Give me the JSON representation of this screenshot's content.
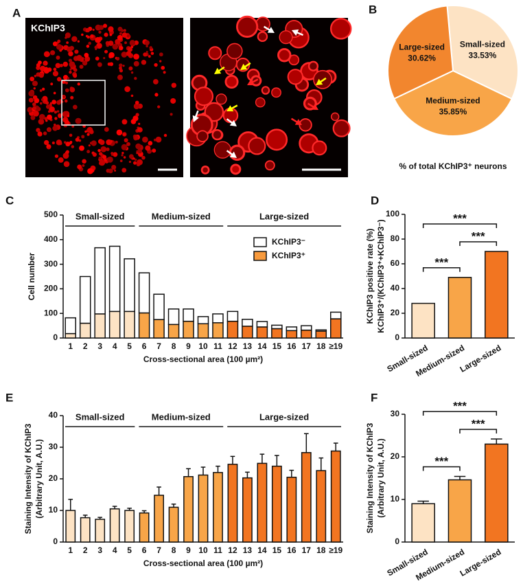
{
  "image_panel": {
    "panel": "A",
    "label": "KChIP3"
  },
  "chart_data": [
    {
      "panel": "B",
      "type": "pie",
      "caption": "% of total KChIP3⁺ neurons",
      "categories": [
        "Small-sized",
        "Medium-sized",
        "Large-sized"
      ],
      "values": [
        33.53,
        35.85,
        30.62
      ],
      "value_labels": [
        "33.53%",
        "35.85%",
        "30.62%"
      ],
      "colors": [
        "#fde3c4",
        "#f8a548",
        "#f2862e"
      ]
    },
    {
      "panel": "C",
      "type": "stacked_bar",
      "xlabel": "Cross-sectional area (100 µm²)",
      "ylabel": "Cell number",
      "categories": [
        "1",
        "2",
        "3",
        "4",
        "5",
        "6",
        "7",
        "8",
        "9",
        "10",
        "11",
        "12",
        "13",
        "14",
        "15",
        "16",
        "17",
        "18",
        "≥19"
      ],
      "series": [
        {
          "name": "KChIP3⁺",
          "color": "#f89a3c",
          "colors": [
            "#fde3c4",
            "#fde3c4",
            "#fde3c4",
            "#fde3c4",
            "#fde3c4",
            "#f8a548",
            "#f8a548",
            "#f8a548",
            "#f8a548",
            "#f8a548",
            "#f8a548",
            "#f27521",
            "#f27521",
            "#f27521",
            "#f27521",
            "#f27521",
            "#f27521",
            "#f27521",
            "#f27521"
          ],
          "values": [
            18,
            60,
            98,
            108,
            108,
            102,
            75,
            55,
            68,
            58,
            62,
            68,
            48,
            45,
            38,
            30,
            32,
            28,
            78
          ]
        },
        {
          "name": "KChIP3⁻",
          "color": "#ffffff",
          "values": [
            64,
            190,
            269,
            265,
            214,
            163,
            103,
            63,
            50,
            29,
            36,
            40,
            28,
            22,
            14,
            15,
            18,
            5,
            27
          ]
        }
      ],
      "ylim": [
        0,
        500
      ],
      "yticks": [
        0,
        100,
        200,
        300,
        400,
        500
      ],
      "legend": "upper right",
      "groups": [
        {
          "name": "Small-sized",
          "from": "1",
          "to": "5"
        },
        {
          "name": "Medium-sized",
          "from": "6",
          "to": "11"
        },
        {
          "name": "Large-sized",
          "from": "12",
          "to": "≥19"
        }
      ]
    },
    {
      "panel": "D",
      "type": "bar",
      "ylabel": [
        "KChIP3 positive rate (%)",
        "KChIP3⁺/(KChIP3⁺+KChIP3⁻)"
      ],
      "categories": [
        "Small-sized",
        "Medium-sized",
        "Large-sized"
      ],
      "values": [
        28,
        49,
        70
      ],
      "colors": [
        "#fde3c4",
        "#f8a548",
        "#f27521"
      ],
      "ylim": [
        0,
        100
      ],
      "yticks": [
        0,
        20,
        40,
        60,
        80,
        100
      ],
      "significance": [
        {
          "label": "***",
          "between": [
            "Small-sized",
            "Large-sized"
          ]
        },
        {
          "label": "***",
          "between": [
            "Small-sized",
            "Medium-sized"
          ]
        },
        {
          "label": "***",
          "between": [
            "Medium-sized",
            "Large-sized"
          ]
        }
      ]
    },
    {
      "panel": "E",
      "type": "bar",
      "xlabel": "Cross-sectional area (100 µm²)",
      "ylabel": [
        "Staining Intensity of KChIP3",
        "(Arbitrary Unit, A.U.)"
      ],
      "categories": [
        "1",
        "2",
        "3",
        "4",
        "5",
        "6",
        "7",
        "8",
        "9",
        "10",
        "11",
        "12",
        "13",
        "14",
        "15",
        "16",
        "17",
        "18",
        "≥19"
      ],
      "values": [
        10,
        7.7,
        7.2,
        10.5,
        10,
        9.2,
        14.8,
        11,
        20.7,
        21.2,
        22,
        24.6,
        20.3,
        24.9,
        24,
        20.5,
        28.3,
        22.6,
        28.8
      ],
      "errors": [
        3.5,
        0.8,
        0.6,
        0.8,
        0.7,
        0.7,
        2.6,
        1,
        2.5,
        2.5,
        2,
        2.5,
        1.8,
        2.9,
        3.4,
        2.2,
        6,
        4,
        2.5
      ],
      "colors": [
        "#fde3c4",
        "#fde3c4",
        "#fde3c4",
        "#fde3c4",
        "#fde3c4",
        "#f8a548",
        "#f8a548",
        "#f8a548",
        "#f8a548",
        "#f8a548",
        "#f8a548",
        "#f27521",
        "#f27521",
        "#f27521",
        "#f27521",
        "#f27521",
        "#f27521",
        "#f27521",
        "#f27521"
      ],
      "ylim": [
        0,
        40
      ],
      "yticks": [
        0,
        10,
        20,
        30,
        40
      ],
      "groups": [
        {
          "name": "Small-sized",
          "from": "1",
          "to": "5"
        },
        {
          "name": "Medium-sized",
          "from": "6",
          "to": "11"
        },
        {
          "name": "Large-sized",
          "from": "12",
          "to": "≥19"
        }
      ]
    },
    {
      "panel": "F",
      "type": "bar",
      "ylabel": [
        "Staining Intensity of KChIP3",
        "(Arbitrary Unit, A.U.)"
      ],
      "categories": [
        "Small-sized",
        "Medium-sized",
        "Large-sized"
      ],
      "values": [
        9,
        14.6,
        23
      ],
      "errors": [
        0.6,
        0.8,
        1.2
      ],
      "colors": [
        "#fde3c4",
        "#f8a548",
        "#f27521"
      ],
      "ylim": [
        0,
        30
      ],
      "yticks": [
        0,
        10,
        20,
        30
      ],
      "significance": [
        {
          "label": "***",
          "between": [
            "Small-sized",
            "Large-sized"
          ]
        },
        {
          "label": "***",
          "between": [
            "Small-sized",
            "Medium-sized"
          ]
        },
        {
          "label": "***",
          "between": [
            "Medium-sized",
            "Large-sized"
          ]
        }
      ]
    }
  ]
}
